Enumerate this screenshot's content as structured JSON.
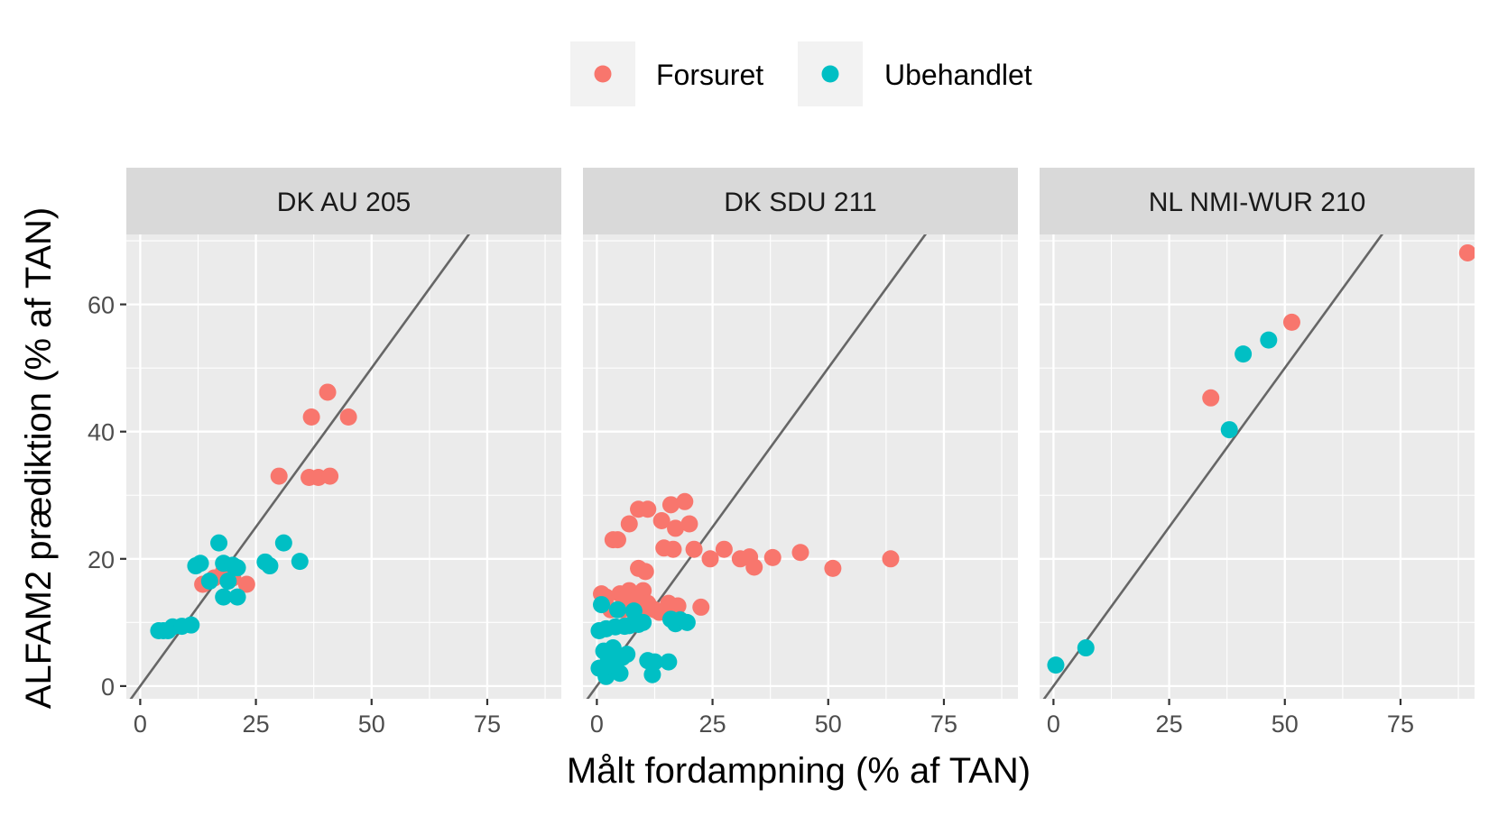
{
  "chart_data": {
    "type": "scatter",
    "xlabel": "Målt fordampning (% af TAN)",
    "ylabel": "ALFAM2 prædiktion (% af TAN)",
    "xlim": [
      -3,
      91
    ],
    "ylim": [
      -2,
      71
    ],
    "x_ticks": [
      0,
      25,
      50,
      75
    ],
    "y_ticks": [
      0,
      20,
      40,
      60
    ],
    "x_minor": [
      12.5,
      37.5,
      62.5,
      87.5
    ],
    "y_minor": [
      10,
      30,
      50,
      70
    ],
    "grid": true,
    "reference_line": "y = x",
    "legend": {
      "position": "top",
      "entries": [
        {
          "label": "Forsuret",
          "color": "#F8766D"
        },
        {
          "label": "Ubehandlet",
          "color": "#00BFC4"
        }
      ]
    },
    "colors": {
      "panel_bg": "#EBEBEB",
      "strip_bg": "#D9D9D9",
      "grid": "#FFFFFF",
      "line": "#666666",
      "Forsuret": "#F8766D",
      "Ubehandlet": "#00BFC4"
    },
    "panels": [
      {
        "label": "DK AU 205",
        "series": [
          {
            "name": "Forsuret",
            "points": [
              [
                13.5,
                16
              ],
              [
                16,
                17
              ],
              [
                18,
                18
              ],
              [
                20,
                17
              ],
              [
                23,
                16
              ],
              [
                30,
                33
              ],
              [
                37,
                42.3
              ],
              [
                36.5,
                32.8
              ],
              [
                38.5,
                32.8
              ],
              [
                41,
                33
              ],
              [
                40.5,
                46.2
              ],
              [
                45,
                42.3
              ]
            ]
          },
          {
            "name": "Ubehandlet",
            "points": [
              [
                4,
                8.7
              ],
              [
                5,
                8.7
              ],
              [
                6,
                8.7
              ],
              [
                7,
                9.3
              ],
              [
                9,
                9.4
              ],
              [
                11,
                9.6
              ],
              [
                12,
                18.9
              ],
              [
                13,
                19.3
              ],
              [
                15,
                16.5
              ],
              [
                17,
                22.5
              ],
              [
                18,
                19.3
              ],
              [
                18,
                14
              ],
              [
                19,
                16.5
              ],
              [
                20,
                19
              ],
              [
                21,
                18.6
              ],
              [
                21,
                14
              ],
              [
                27,
                19.5
              ],
              [
                28,
                18.9
              ],
              [
                31,
                22.5
              ],
              [
                34.5,
                19.6
              ]
            ]
          }
        ]
      },
      {
        "label": "DK SDU 211",
        "series": [
          {
            "name": "Forsuret",
            "points": [
              [
                1,
                14.5
              ],
              [
                2,
                14
              ],
              [
                3,
                12
              ],
              [
                3.5,
                23
              ],
              [
                4.5,
                23
              ],
              [
                5,
                14.5
              ],
              [
                5.5,
                12
              ],
              [
                7,
                25.5
              ],
              [
                7,
                15
              ],
              [
                7.5,
                13
              ],
              [
                8,
                11.7
              ],
              [
                9,
                27.8
              ],
              [
                9,
                18.5
              ],
              [
                9,
                14
              ],
              [
                10,
                15
              ],
              [
                10,
                12
              ],
              [
                10.5,
                18
              ],
              [
                11,
                27.8
              ],
              [
                11,
                13
              ],
              [
                12.5,
                12
              ],
              [
                13.5,
                11.6
              ],
              [
                14,
                26
              ],
              [
                14.5,
                21.7
              ],
              [
                15.5,
                13
              ],
              [
                16,
                28.5
              ],
              [
                16.5,
                21.5
              ],
              [
                17,
                24.8
              ],
              [
                17.5,
                12.6
              ],
              [
                19,
                29
              ],
              [
                20,
                25.5
              ],
              [
                21,
                21.5
              ],
              [
                22.5,
                12.4
              ],
              [
                24.5,
                20
              ],
              [
                27.5,
                21.5
              ],
              [
                31,
                20
              ],
              [
                33,
                20.3
              ],
              [
                34,
                18.7
              ],
              [
                38,
                20.2
              ],
              [
                44,
                21
              ],
              [
                51,
                18.5
              ],
              [
                63.5,
                20
              ]
            ]
          },
          {
            "name": "Ubehandlet",
            "points": [
              [
                0.5,
                8.7
              ],
              [
                0.5,
                2.8
              ],
              [
                1,
                12.8
              ],
              [
                1.5,
                5.5
              ],
              [
                2,
                1.5
              ],
              [
                2,
                9
              ],
              [
                2.5,
                4
              ],
              [
                3,
                3
              ],
              [
                3.5,
                6
              ],
              [
                4,
                9.3
              ],
              [
                4.5,
                12
              ],
              [
                5,
                2
              ],
              [
                5.5,
                4.5
              ],
              [
                6,
                9.4
              ],
              [
                6.5,
                5
              ],
              [
                7,
                9.5
              ],
              [
                8,
                11.8
              ],
              [
                9,
                9.7
              ],
              [
                10,
                10
              ],
              [
                11,
                4
              ],
              [
                12,
                1.8
              ],
              [
                12.5,
                3.8
              ],
              [
                15.5,
                3.8
              ],
              [
                16,
                10.5
              ],
              [
                17,
                9.8
              ],
              [
                18,
                10.4
              ],
              [
                19.5,
                10
              ]
            ]
          }
        ]
      },
      {
        "label": "NL NMI-WUR 210",
        "series": [
          {
            "name": "Forsuret",
            "points": [
              [
                34,
                45.3
              ],
              [
                51.5,
                57.2
              ],
              [
                89.5,
                68.1
              ]
            ]
          },
          {
            "name": "Ubehandlet",
            "points": [
              [
                0.5,
                3.3
              ],
              [
                7,
                6
              ],
              [
                38,
                40.3
              ],
              [
                41,
                52.2
              ],
              [
                46.5,
                54.4
              ]
            ]
          }
        ]
      }
    ]
  }
}
